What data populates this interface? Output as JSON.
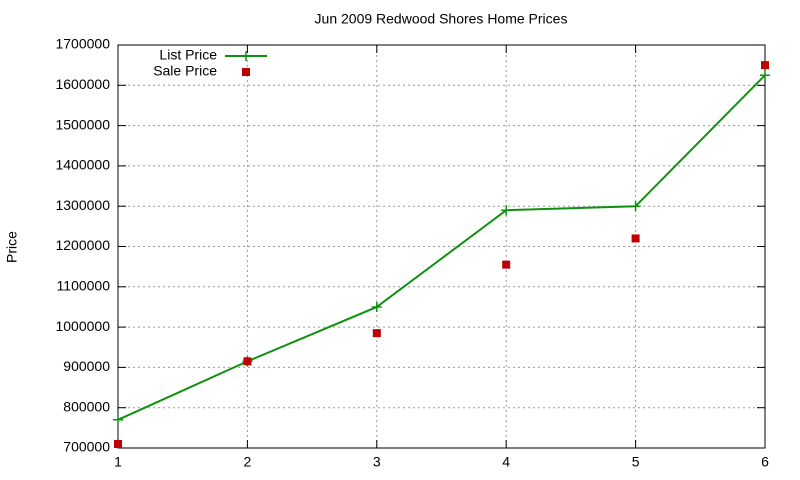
{
  "chart_data": {
    "type": "line",
    "title": "Jun 2009 Redwood Shores Home Prices",
    "ylabel": "Price",
    "x": [
      1,
      2,
      3,
      4,
      5,
      6
    ],
    "series": [
      {
        "name": "List Price",
        "color": "#109010",
        "style": "linespoints",
        "values": [
          770000,
          915000,
          1050000,
          1290000,
          1300000,
          1625000
        ]
      },
      {
        "name": "Sale Price",
        "color": "#c00000",
        "style": "points",
        "values": [
          710000,
          915000,
          985000,
          1155000,
          1220000,
          1650000
        ]
      }
    ],
    "xlim": [
      1,
      6
    ],
    "xticks": [
      1,
      2,
      3,
      4,
      5,
      6
    ],
    "ylim": [
      700000,
      1700000
    ],
    "yticks": [
      700000,
      800000,
      900000,
      1000000,
      1100000,
      1200000,
      1300000,
      1400000,
      1500000,
      1600000,
      1700000
    ],
    "grid": true,
    "legend": "top-left"
  }
}
